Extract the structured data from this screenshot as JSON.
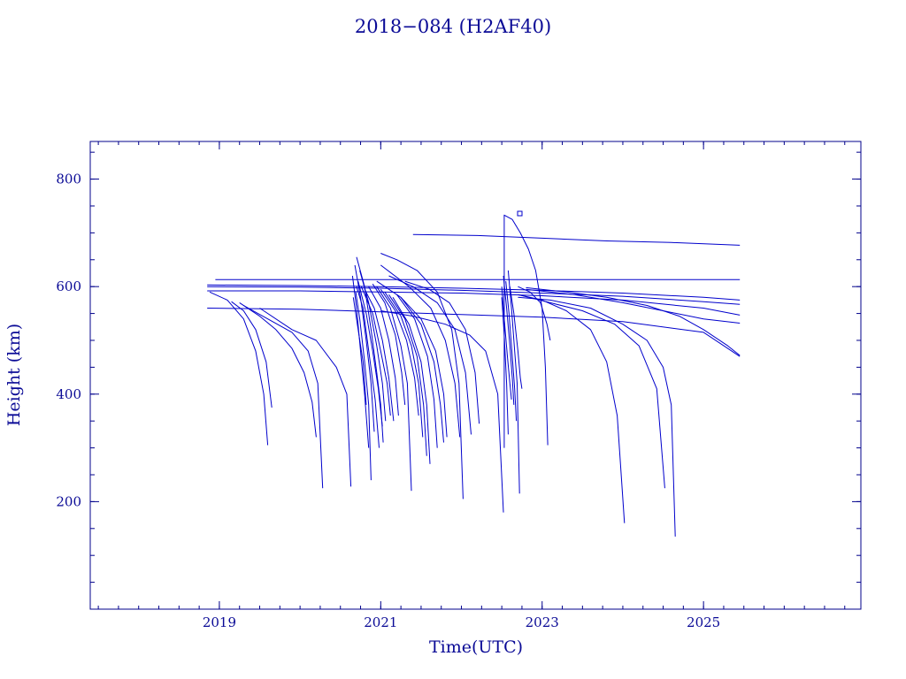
{
  "chart_data": {
    "type": "line",
    "title": "2018−084 (H2AF40)",
    "xlabel": "Time(UTC)",
    "ylabel": "Height (km)",
    "xlim": [
      2017.4,
      2026.95
    ],
    "ylim": [
      0,
      870
    ],
    "xticks": [
      2019,
      2021,
      2023,
      2025
    ],
    "xtick_labels": [
      "2019",
      "2021",
      "2023",
      "2025"
    ],
    "yticks": [
      200,
      400,
      600,
      800
    ],
    "ytick_labels": [
      "200",
      "400",
      "600",
      "800"
    ],
    "grid": false,
    "legend": "none",
    "line_color": "#0000cc",
    "axis_color": "#00008b",
    "series": [
      {
        "x": [
          2018.88,
          2019.1,
          2019.3,
          2019.45,
          2019.55,
          2019.6
        ],
        "y": [
          590,
          575,
          540,
          480,
          400,
          305
        ]
      },
      {
        "x": [
          2019.15,
          2019.3,
          2019.45,
          2019.58,
          2019.65
        ],
        "y": [
          572,
          555,
          520,
          460,
          375
        ]
      },
      {
        "x": [
          2019.25,
          2019.5,
          2019.7,
          2019.9,
          2020.05,
          2020.15,
          2020.2
        ],
        "y": [
          570,
          545,
          520,
          485,
          440,
          385,
          320
        ]
      },
      {
        "x": [
          2019.3,
          2019.6,
          2019.9,
          2020.1,
          2020.22,
          2020.28
        ],
        "y": [
          565,
          540,
          515,
          480,
          420,
          225
        ]
      },
      {
        "x": [
          2019.5,
          2019.9,
          2020.2,
          2020.45,
          2020.58,
          2020.63
        ],
        "y": [
          560,
          520,
          500,
          450,
          400,
          228
        ]
      },
      {
        "x": [
          2020.65,
          2020.7,
          2020.75,
          2020.8,
          2020.85
        ],
        "y": [
          620,
          560,
          480,
          400,
          300
        ]
      },
      {
        "x": [
          2020.68,
          2020.75,
          2020.82,
          2020.88,
          2020.92
        ],
        "y": [
          640,
          580,
          500,
          420,
          330
        ]
      },
      {
        "x": [
          2020.7,
          2020.78,
          2020.86,
          2020.93,
          2020.98
        ],
        "y": [
          600,
          560,
          470,
          390,
          300
        ]
      },
      {
        "x": [
          2020.72,
          2020.82,
          2020.9,
          2020.97,
          2021.02
        ],
        "y": [
          610,
          550,
          480,
          410,
          340
        ]
      },
      {
        "x": [
          2020.74,
          2020.85,
          2020.95,
          2021.02,
          2021.06
        ],
        "y": [
          630,
          570,
          490,
          420,
          350
        ]
      },
      {
        "x": [
          2020.66,
          2020.72,
          2020.78,
          2020.82
        ],
        "y": [
          580,
          520,
          460,
          380
        ]
      },
      {
        "x": [
          2020.7,
          2020.8,
          2020.88,
          2020.95,
          2021.0,
          2021.03
        ],
        "y": [
          655,
          600,
          520,
          440,
          380,
          310
        ]
      },
      {
        "x": [
          2020.76,
          2020.9,
          2021.0,
          2021.08,
          2021.12
        ],
        "y": [
          600,
          550,
          480,
          420,
          360
        ]
      },
      {
        "x": [
          2020.8,
          2020.92,
          2021.02,
          2021.1,
          2021.16
        ],
        "y": [
          595,
          560,
          500,
          430,
          350
        ]
      },
      {
        "x": [
          2020.69,
          2020.74,
          2020.8,
          2020.85,
          2020.88
        ],
        "y": [
          590,
          540,
          460,
          380,
          240
        ]
      },
      {
        "x": [
          2020.85,
          2021.0,
          2021.1,
          2021.18,
          2021.22
        ],
        "y": [
          600,
          560,
          500,
          430,
          360
        ]
      },
      {
        "x": [
          2020.9,
          2021.05,
          2021.18,
          2021.26,
          2021.3
        ],
        "y": [
          605,
          570,
          510,
          440,
          380
        ]
      },
      {
        "x": [
          2020.95,
          2021.12,
          2021.25,
          2021.33,
          2021.38
        ],
        "y": [
          600,
          560,
          490,
          420,
          220
        ]
      },
      {
        "x": [
          2021.0,
          2021.18,
          2021.32,
          2021.42,
          2021.47
        ],
        "y": [
          595,
          555,
          500,
          430,
          360
        ]
      },
      {
        "x": [
          2021.05,
          2021.25,
          2021.38,
          2021.47,
          2021.52
        ],
        "y": [
          590,
          545,
          490,
          420,
          320
        ]
      },
      {
        "x": [
          2021.1,
          2021.3,
          2021.45,
          2021.53,
          2021.57
        ],
        "y": [
          585,
          540,
          470,
          380,
          285
        ]
      },
      {
        "x": [
          2021.15,
          2021.35,
          2021.5,
          2021.57,
          2021.61
        ],
        "y": [
          580,
          530,
          460,
          380,
          270
        ]
      },
      {
        "x": [
          2021.2,
          2021.42,
          2021.58,
          2021.66,
          2021.7
        ],
        "y": [
          585,
          540,
          470,
          390,
          300
        ]
      },
      {
        "x": [
          2021.25,
          2021.5,
          2021.66,
          2021.74,
          2021.78
        ],
        "y": [
          580,
          530,
          460,
          380,
          310
        ]
      },
      {
        "x": [
          2020.95,
          2021.25,
          2021.5,
          2021.68,
          2021.78,
          2021.82
        ],
        "y": [
          610,
          580,
          540,
          480,
          400,
          320
        ]
      },
      {
        "x": [
          2021.0,
          2021.35,
          2021.62,
          2021.8,
          2021.92,
          2021.98
        ],
        "y": [
          640,
          600,
          560,
          500,
          420,
          320
        ]
      },
      {
        "x": [
          2021.0,
          2021.2,
          2021.45,
          2021.7,
          2021.88,
          2021.97,
          2022.02
        ],
        "y": [
          662,
          650,
          630,
          590,
          520,
          420,
          205
        ]
      },
      {
        "x": [
          2021.1,
          2021.4,
          2021.7,
          2021.92,
          2022.05,
          2022.12
        ],
        "y": [
          620,
          600,
          570,
          520,
          440,
          325
        ]
      },
      {
        "x": [
          2021.3,
          2021.6,
          2021.85,
          2022.05,
          2022.17,
          2022.22
        ],
        "y": [
          610,
          595,
          570,
          520,
          440,
          345
        ]
      },
      {
        "x": [
          2021.0,
          2021.4,
          2021.8,
          2022.1,
          2022.3,
          2022.45,
          2022.52
        ],
        "y": [
          555,
          545,
          530,
          510,
          480,
          400,
          180
        ]
      },
      {
        "x": [
          2022.5,
          2022.53,
          2022.57,
          2022.6,
          2022.62
        ],
        "y": [
          600,
          540,
          470,
          420,
          390
        ]
      },
      {
        "x": [
          2022.52,
          2022.56,
          2022.6,
          2022.63,
          2022.65
        ],
        "y": [
          620,
          560,
          490,
          430,
          380
        ]
      },
      {
        "x": [
          2022.55,
          2022.59,
          2022.63,
          2022.66,
          2022.68
        ],
        "y": [
          610,
          550,
          470,
          410,
          350
        ]
      },
      {
        "x": [
          2022.58,
          2022.62,
          2022.66,
          2022.69,
          2022.72
        ],
        "y": [
          630,
          560,
          480,
          420,
          215
        ]
      },
      {
        "x": [
          2022.6,
          2022.65,
          2022.7,
          2022.73,
          2022.75
        ],
        "y": [
          600,
          550,
          480,
          430,
          410
        ]
      },
      {
        "x": [
          2022.5,
          2022.53,
          2022.56,
          2022.58
        ],
        "y": [
          580,
          510,
          420,
          325
        ]
      },
      {
        "x": [
          2022.53,
          2022.53,
          2022.63,
          2022.73,
          2022.83,
          2022.92,
          2023.0,
          2023.04,
          2023.07
        ],
        "y": [
          300,
          733,
          725,
          700,
          670,
          630,
          560,
          450,
          305
        ]
      },
      {
        "x": [
          2022.7,
          2022.85,
          2022.98,
          2023.06,
          2023.1
        ],
        "y": [
          600,
          590,
          570,
          530,
          500
        ]
      },
      {
        "x": [
          2022.7,
          2023.0,
          2023.3,
          2023.6,
          2023.8,
          2023.93,
          2024.02
        ],
        "y": [
          585,
          575,
          555,
          520,
          460,
          360,
          160
        ]
      },
      {
        "x": [
          2022.7,
          2023.1,
          2023.5,
          2023.9,
          2024.2,
          2024.42,
          2024.52
        ],
        "y": [
          585,
          570,
          555,
          530,
          490,
          410,
          225
        ]
      },
      {
        "x": [
          2022.7,
          2023.1,
          2023.6,
          2024.0,
          2024.3,
          2024.5,
          2024.6,
          2024.65
        ],
        "y": [
          580,
          575,
          560,
          530,
          500,
          450,
          380,
          135
        ]
      },
      {
        "x": [
          2021.4,
          2022.2,
          2023.0,
          2023.8,
          2024.6,
          2025.45
        ],
        "y": [
          697,
          695,
          690,
          685,
          682,
          677
        ]
      },
      {
        "x": [
          2018.95,
          2025.45
        ],
        "y": [
          613,
          613
        ]
      },
      {
        "x": [
          2018.85,
          2020.0,
          2021.0,
          2022.0,
          2023.0,
          2024.0,
          2025.0,
          2025.45
        ],
        "y": [
          603,
          602,
          600,
          597,
          593,
          588,
          580,
          575
        ]
      },
      {
        "x": [
          2018.85,
          2020.0,
          2021.0,
          2022.0,
          2023.0,
          2024.0,
          2025.0,
          2025.45
        ],
        "y": [
          600,
          599,
          597,
          593,
          588,
          582,
          572,
          567
        ]
      },
      {
        "x": [
          2018.85,
          2020.0,
          2021.0,
          2022.0,
          2023.0,
          2024.0,
          2025.0,
          2025.45
        ],
        "y": [
          592,
          592,
          590,
          588,
          583,
          575,
          560,
          547
        ]
      },
      {
        "x": [
          2018.85,
          2020.0,
          2021.0,
          2022.0,
          2023.0,
          2024.0,
          2025.0,
          2025.45
        ],
        "y": [
          560,
          558,
          553,
          548,
          543,
          535,
          515,
          470
        ]
      },
      {
        "x": [
          2022.8,
          2023.3,
          2023.8,
          2024.3,
          2024.7,
          2025.0,
          2025.3,
          2025.45
        ],
        "y": [
          598,
          590,
          580,
          565,
          545,
          520,
          490,
          472
        ]
      },
      {
        "x": [
          2022.8,
          2023.4,
          2024.0,
          2024.5,
          2025.0,
          2025.45
        ],
        "y": [
          595,
          585,
          570,
          555,
          540,
          532
        ]
      }
    ]
  }
}
